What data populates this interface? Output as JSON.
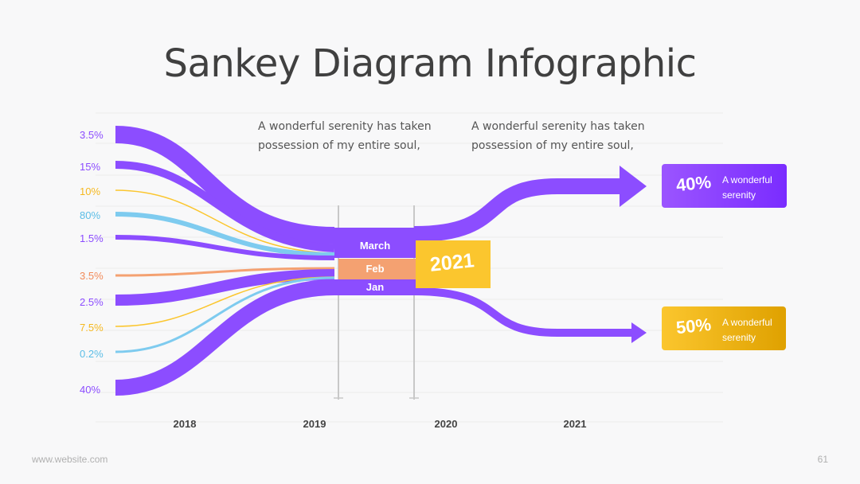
{
  "title": "Sankey Diagram Infographic",
  "descriptions": [
    "A wonderful serenity has taken possession of my entire soul,",
    "A wonderful serenity has taken possession of my entire soul,"
  ],
  "colors": {
    "purple": "#8c4dff",
    "yellow": "#fbc62e",
    "blue": "#7ecbef",
    "orange": "#f4a171"
  },
  "left_labels": [
    {
      "text": "3.5%",
      "color": "#8c4dff"
    },
    {
      "text": "15%",
      "color": "#8c4dff"
    },
    {
      "text": "10%",
      "color": "#f5b820"
    },
    {
      "text": "80%",
      "color": "#5bbde6"
    },
    {
      "text": "1.5%",
      "color": "#8c4dff"
    },
    {
      "text": "3.5%",
      "color": "#f28b5a"
    },
    {
      "text": "2.5%",
      "color": "#8c4dff"
    },
    {
      "text": "7.5%",
      "color": "#f5b820"
    },
    {
      "text": "0.2%",
      "color": "#5bbde6"
    },
    {
      "text": "40%",
      "color": "#8c4dff"
    }
  ],
  "x_axis": [
    "2018",
    "2019",
    "2020",
    "2021"
  ],
  "months": [
    "March",
    "Feb",
    "Jan"
  ],
  "center_badge": "2021",
  "cards": [
    {
      "pct": "40%",
      "text": "A wonderful serenity"
    },
    {
      "pct": "50%",
      "text": "A wonderful serenity"
    }
  ],
  "footer": {
    "website": "www.website.com",
    "page": "61"
  }
}
